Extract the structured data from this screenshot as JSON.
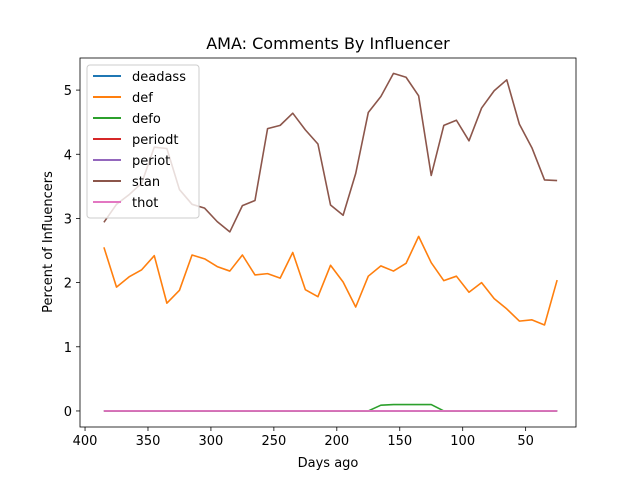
{
  "chart_data": {
    "type": "line",
    "title": "AMA: Comments By Influencer",
    "xlabel": "Days ago",
    "ylabel": "Percent of Influencers",
    "xlim": [
      404,
      10
    ],
    "ylim": [
      -0.25,
      5.5
    ],
    "x_ticks": [
      400,
      350,
      300,
      250,
      200,
      150,
      100,
      50
    ],
    "x_tick_labels": [
      "400",
      "350",
      "300",
      "250",
      "200",
      "150",
      "100",
      "50"
    ],
    "y_ticks": [
      0,
      1,
      2,
      3,
      4,
      5
    ],
    "y_tick_labels": [
      "0",
      "1",
      "2",
      "3",
      "4",
      "5"
    ],
    "grid": false,
    "legend_position": "upper-left",
    "x": [
      385,
      375,
      365,
      355,
      345,
      335,
      325,
      315,
      305,
      295,
      285,
      275,
      265,
      255,
      245,
      235,
      225,
      215,
      205,
      195,
      185,
      175,
      165,
      155,
      145,
      135,
      125,
      115,
      105,
      95,
      85,
      75,
      65,
      55,
      45,
      35,
      25
    ],
    "series": [
      {
        "name": "deadass",
        "color": "#1f77b4",
        "values": [
          0,
          0,
          0,
          0,
          0,
          0,
          0,
          0,
          0,
          0,
          0,
          0,
          0,
          0,
          0,
          0,
          0,
          0,
          0,
          0,
          0,
          0,
          0,
          0,
          0,
          0,
          0,
          0,
          0,
          0,
          0,
          0,
          0,
          0,
          0,
          0,
          0
        ]
      },
      {
        "name": "def",
        "color": "#ff7f0e",
        "values": [
          2.55,
          1.93,
          2.09,
          2.2,
          2.42,
          1.68,
          1.88,
          2.43,
          2.37,
          2.25,
          2.18,
          2.43,
          2.12,
          2.14,
          2.07,
          2.47,
          1.89,
          1.78,
          2.27,
          2.01,
          1.62,
          2.1,
          2.26,
          2.18,
          2.3,
          2.72,
          2.31,
          2.03,
          2.1,
          1.85,
          2.0,
          1.75,
          1.59,
          1.4,
          1.42,
          1.34,
          2.04
        ]
      },
      {
        "name": "defo",
        "color": "#2ca02c",
        "values": [
          0,
          0,
          0,
          0,
          0,
          0,
          0,
          0,
          0,
          0,
          0,
          0,
          0,
          0,
          0,
          0,
          0,
          0,
          0,
          0,
          0,
          0,
          0.09,
          0.1,
          0.1,
          0.1,
          0.1,
          0,
          0,
          0,
          0,
          0,
          0,
          0,
          0,
          0,
          0
        ]
      },
      {
        "name": "periodt",
        "color": "#d62728",
        "values": [
          0,
          0,
          0,
          0,
          0,
          0,
          0,
          0,
          0,
          0,
          0,
          0,
          0,
          0,
          0,
          0,
          0,
          0,
          0,
          0,
          0,
          0,
          0,
          0,
          0,
          0,
          0,
          0,
          0,
          0,
          0,
          0,
          0,
          0,
          0,
          0,
          0
        ]
      },
      {
        "name": "periot",
        "color": "#9467bd",
        "values": [
          0,
          0,
          0,
          0,
          0,
          0,
          0,
          0,
          0,
          0,
          0,
          0,
          0,
          0,
          0,
          0,
          0,
          0,
          0,
          0,
          0,
          0,
          0,
          0,
          0,
          0,
          0,
          0,
          0,
          0,
          0,
          0,
          0,
          0,
          0,
          0,
          0
        ]
      },
      {
        "name": "stan",
        "color": "#8c564b",
        "values": [
          2.94,
          3.22,
          3.37,
          3.55,
          4.11,
          4.09,
          3.45,
          3.22,
          3.16,
          2.95,
          2.79,
          3.2,
          3.28,
          4.4,
          4.45,
          4.64,
          4.38,
          4.16,
          3.21,
          3.05,
          3.7,
          4.65,
          4.9,
          5.26,
          5.2,
          4.91,
          3.67,
          4.45,
          4.53,
          4.21,
          4.72,
          4.99,
          5.16,
          4.47,
          4.1,
          3.6,
          3.59
        ]
      },
      {
        "name": "thot",
        "color": "#e377c2",
        "values": [
          0,
          0,
          0,
          0,
          0,
          0,
          0,
          0,
          0,
          0,
          0,
          0,
          0,
          0,
          0,
          0,
          0,
          0,
          0,
          0,
          0,
          0,
          0,
          0,
          0,
          0,
          0,
          0,
          0,
          0,
          0,
          0,
          0,
          0,
          0,
          0,
          0
        ]
      }
    ]
  }
}
